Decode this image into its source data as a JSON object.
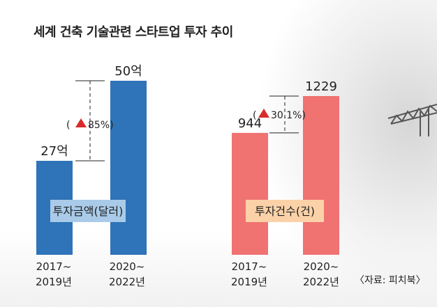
{
  "title": "세계 건축 기술관련 스타트업 투자 추이",
  "source": "〈자료: 피치북〉",
  "colors": {
    "investment_bar": "#2f73b8",
    "count_bar": "#f07271",
    "investment_label_bg": "#a9cbe9",
    "count_label_bg": "#fbd2a8",
    "growth_triangle": "#d92b2b"
  },
  "chart_data": [
    {
      "type": "bar",
      "label": "투자금액(달러)",
      "categories": [
        "2017~ 2019년",
        "2020~ 2022년"
      ],
      "category_lines": [
        [
          "2017~",
          "2019년"
        ],
        [
          "2020~",
          "2022년"
        ]
      ],
      "values": [
        27,
        50
      ],
      "value_labels": [
        "27억",
        "50억"
      ],
      "growth_label": "( ▲85%)",
      "growth_text": "85%)",
      "grid": false
    },
    {
      "type": "bar",
      "label": "투자건수(건)",
      "categories": [
        "2017~ 2019년",
        "2020~ 2022년"
      ],
      "category_lines": [
        [
          "2017~",
          "2019년"
        ],
        [
          "2020~",
          "2022년"
        ]
      ],
      "values": [
        944,
        1229
      ],
      "value_labels": [
        "944",
        "1229"
      ],
      "growth_label": "( ▲30.1%)",
      "growth_text": "30.1%)",
      "grid": false
    }
  ]
}
